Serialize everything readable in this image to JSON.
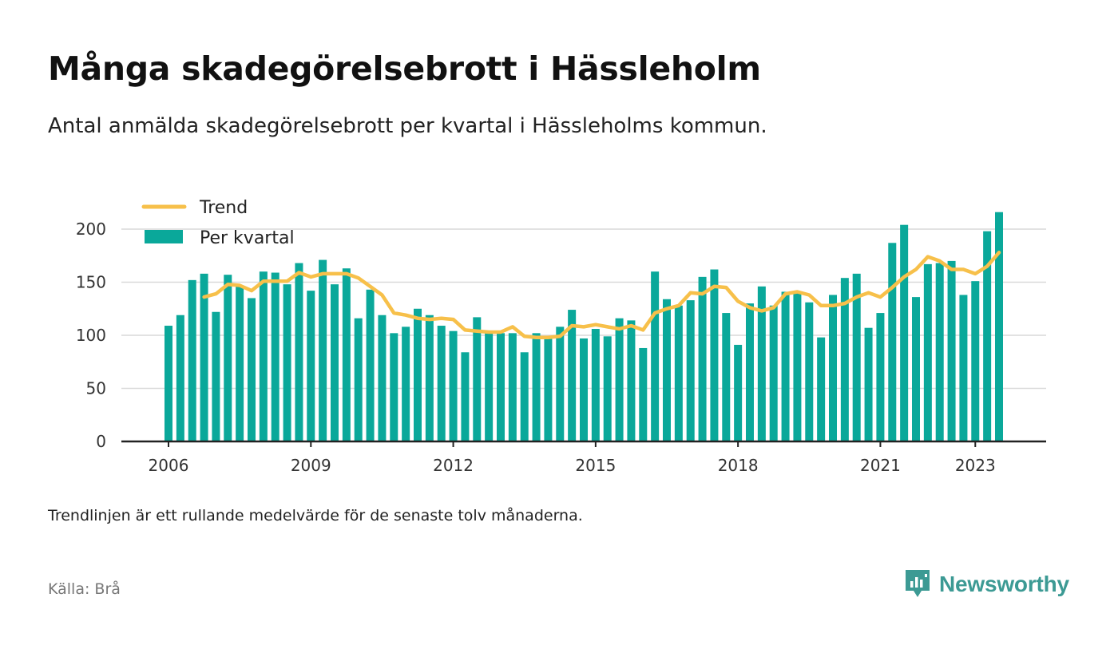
{
  "header": {
    "title": "Många skadegörelsebrott i Hässleholm",
    "subtitle": "Antal anmälda skadegörelsebrott per kvartal i Hässleholms kommun."
  },
  "footer": {
    "note": "Trendlinjen är ett rullande medelvärde för de senaste tolv månaderna.",
    "source": "Källa: Brå",
    "brand": "Newsworthy",
    "brand_icon": "newsworthy-logo-icon"
  },
  "colors": {
    "bars": "#0aa89a",
    "trend": "#f7c04a",
    "grid": "#d9d9d9",
    "axis": "#222222",
    "brand": "#3c9a94"
  },
  "chart_data": {
    "type": "bar",
    "legend_position": "top-left",
    "grid": true,
    "ylim": [
      0,
      220
    ],
    "yticks": [
      0,
      50,
      100,
      150,
      200
    ],
    "xticks": [
      "2006",
      "2009",
      "2012",
      "2015",
      "2018",
      "2021",
      "2023"
    ],
    "xlabel": "",
    "ylabel": "",
    "x": [
      "2006 Q1",
      "2006 Q2",
      "2006 Q3",
      "2006 Q4",
      "2007 Q1",
      "2007 Q2",
      "2007 Q3",
      "2007 Q4",
      "2008 Q1",
      "2008 Q2",
      "2008 Q3",
      "2008 Q4",
      "2009 Q1",
      "2009 Q2",
      "2009 Q3",
      "2009 Q4",
      "2010 Q1",
      "2010 Q2",
      "2010 Q3",
      "2010 Q4",
      "2011 Q1",
      "2011 Q2",
      "2011 Q3",
      "2011 Q4",
      "2012 Q1",
      "2012 Q2",
      "2012 Q3",
      "2012 Q4",
      "2013 Q1",
      "2013 Q2",
      "2013 Q3",
      "2013 Q4",
      "2014 Q1",
      "2014 Q2",
      "2014 Q3",
      "2014 Q4",
      "2015 Q1",
      "2015 Q2",
      "2015 Q3",
      "2015 Q4",
      "2016 Q1",
      "2016 Q2",
      "2016 Q3",
      "2016 Q4",
      "2017 Q1",
      "2017 Q2",
      "2017 Q3",
      "2017 Q4",
      "2018 Q1",
      "2018 Q2",
      "2018 Q3",
      "2018 Q4",
      "2019 Q1",
      "2019 Q2",
      "2019 Q3",
      "2019 Q4",
      "2020 Q1",
      "2020 Q2",
      "2020 Q3",
      "2020 Q4",
      "2021 Q1",
      "2021 Q2",
      "2021 Q3",
      "2021 Q4",
      "2022 Q1",
      "2022 Q2",
      "2022 Q3",
      "2022 Q4",
      "2023 Q1",
      "2023 Q2",
      "2023 Q3"
    ],
    "series": [
      {
        "name": "Per kvartal",
        "kind": "bar",
        "values": [
          109,
          119,
          152,
          158,
          122,
          157,
          147,
          135,
          160,
          159,
          148,
          168,
          142,
          171,
          148,
          163,
          116,
          143,
          119,
          102,
          108,
          125,
          119,
          109,
          104,
          84,
          117,
          103,
          102,
          102,
          84,
          102,
          98,
          108,
          124,
          97,
          106,
          99,
          116,
          114,
          88,
          160,
          134,
          128,
          133,
          155,
          162,
          121,
          91,
          130,
          146,
          128,
          141,
          140,
          131,
          98,
          138,
          154,
          158,
          107,
          121,
          187,
          204,
          136,
          167,
          168,
          170,
          138,
          151,
          198,
          216
        ]
      },
      {
        "name": "Trend",
        "kind": "line",
        "values": [
          null,
          null,
          null,
          136,
          139,
          148,
          147,
          142,
          151,
          151,
          151,
          159,
          155,
          158,
          158,
          158,
          154,
          146,
          138,
          121,
          119,
          116,
          115,
          116,
          115,
          105,
          104,
          103,
          103,
          108,
          99,
          98,
          98,
          99,
          109,
          108,
          110,
          108,
          106,
          109,
          105,
          121,
          125,
          128,
          140,
          139,
          146,
          145,
          132,
          126,
          123,
          126,
          139,
          141,
          138,
          128,
          128,
          130,
          136,
          140,
          136,
          145,
          155,
          162,
          174,
          170,
          162,
          162,
          158,
          165,
          178
        ]
      }
    ]
  }
}
